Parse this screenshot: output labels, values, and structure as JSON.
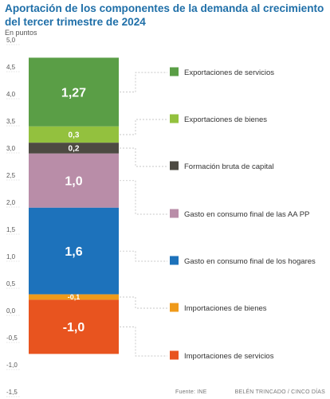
{
  "chart_data": {
    "type": "bar",
    "stacked": true,
    "title": "Aportación de los componentes de la demanda al crecimiento del tercer trimestre de 2024",
    "subtitle": "En puntos",
    "ylim": [
      -1.5,
      5.0
    ],
    "yticks": [
      "5,0",
      "4,5",
      "4,0",
      "3,5",
      "3,0",
      "2,5",
      "2,0",
      "1,5",
      "1,0",
      "0,5",
      "0,0",
      "-0,5",
      "-1,0",
      "-1,5"
    ],
    "yticks_values": [
      5.0,
      4.5,
      4.0,
      3.5,
      3.0,
      2.5,
      2.0,
      1.5,
      1.0,
      0.5,
      0.0,
      -0.5,
      -1.0,
      -1.5
    ],
    "grid": false,
    "legend_position": "right",
    "segments": [
      {
        "name": "Exportaciones de servicios",
        "value": 1.27,
        "label": "1,27",
        "color": "#5a9e46",
        "from": 3.4,
        "to": 4.67,
        "label_size": 16
      },
      {
        "name": "Exportaciones de bienes",
        "value": 0.3,
        "label": "0,3",
        "color": "#93c13e",
        "from": 3.1,
        "to": 3.4,
        "label_size": 10
      },
      {
        "name": "Formación bruta de capital",
        "value": 0.2,
        "label": "0,2",
        "color": "#4d4a42",
        "from": 2.9,
        "to": 3.1,
        "label_size": 10
      },
      {
        "name": "Gasto en consumo final de las AA PP",
        "value": 1.0,
        "label": "1,0",
        "color": "#b98da8",
        "from": 1.9,
        "to": 2.9,
        "label_size": 16
      },
      {
        "name": "Gasto en consumo final de los hogares",
        "value": 1.6,
        "label": "1,6",
        "color": "#1d72bb",
        "from": 0.3,
        "to": 1.9,
        "label_size": 16
      },
      {
        "name": "Importaciones de bienes",
        "value": -0.1,
        "label": "-0,1",
        "color": "#ef9a1a",
        "from": 0.3,
        "to": 0.2,
        "label_size": 9
      },
      {
        "name": "Importaciones de servicios",
        "value": -1.0,
        "label": "-1,0",
        "color": "#e8541f",
        "from": 0.2,
        "to": -0.8,
        "label_size": 16
      }
    ]
  },
  "footer": {
    "source": "Fuente: INE",
    "credit": "BELÉN TRINCADO / CINCO DÍAS"
  }
}
